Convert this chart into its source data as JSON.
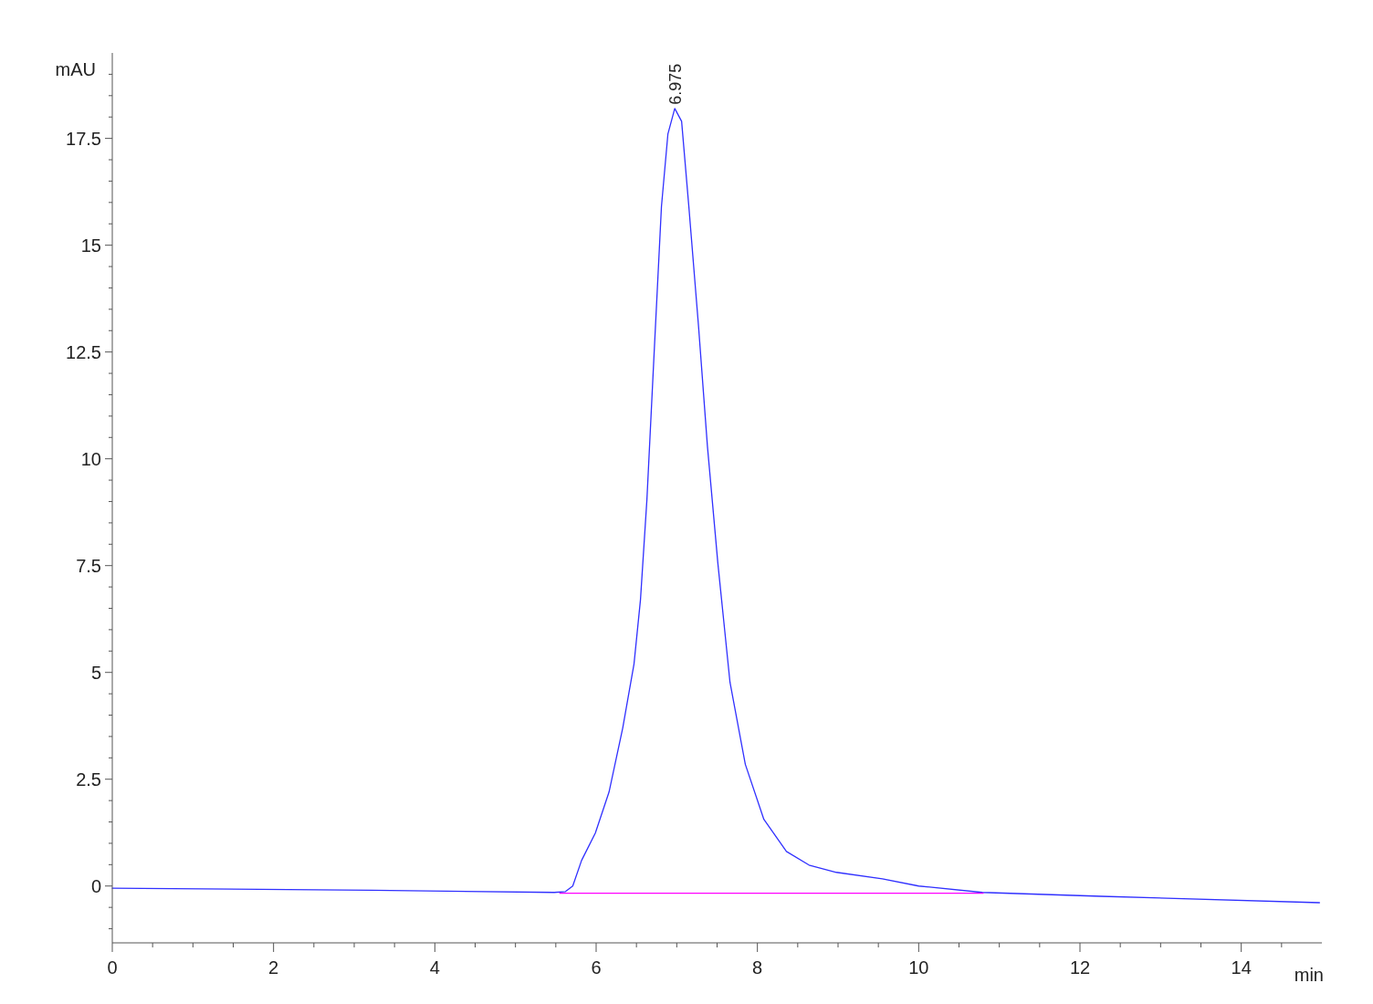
{
  "chart_data": {
    "type": "line",
    "xlabel": "min",
    "ylabel": "mAU",
    "xlim": [
      0,
      15
    ],
    "ylim": [
      -1.33,
      19.5
    ],
    "xticks": [
      0,
      {
        "value": 0.5,
        "label": null
      },
      {
        "value": 1,
        "label": null
      },
      {
        "value": 1.5,
        "label": null
      },
      2,
      {
        "value": 2.5,
        "label": null
      },
      {
        "value": 3,
        "label": null
      },
      {
        "value": 3.5,
        "label": null
      },
      4,
      {
        "value": 4.5,
        "label": null
      },
      {
        "value": 5,
        "label": null
      },
      {
        "value": 5.5,
        "label": null
      },
      6,
      {
        "value": 6.5,
        "label": null
      },
      {
        "value": 7,
        "label": null
      },
      {
        "value": 7.5,
        "label": null
      },
      8,
      {
        "value": 8.5,
        "label": null
      },
      {
        "value": 9,
        "label": null
      },
      {
        "value": 9.5,
        "label": null
      },
      10,
      {
        "value": 10.5,
        "label": null
      },
      {
        "value": 11,
        "label": null
      },
      {
        "value": 11.5,
        "label": null
      },
      12,
      {
        "value": 12.5,
        "label": null
      },
      {
        "value": 13,
        "label": null
      },
      {
        "value": 13.5,
        "label": null
      },
      14,
      {
        "value": 14.5,
        "label": null
      }
    ],
    "yticks": [
      {
        "value": -1,
        "label": null
      },
      {
        "value": -0.5,
        "label": null
      },
      0,
      {
        "value": 0.5,
        "label": null
      },
      {
        "value": 1,
        "label": null
      },
      {
        "value": 1.5,
        "label": null
      },
      {
        "value": 2,
        "label": null
      },
      2.5,
      {
        "value": 3,
        "label": null
      },
      {
        "value": 3.5,
        "label": null
      },
      {
        "value": 4,
        "label": null
      },
      {
        "value": 4.5,
        "label": null
      },
      5,
      {
        "value": 5.5,
        "label": null
      },
      {
        "value": 6,
        "label": null
      },
      {
        "value": 6.5,
        "label": null
      },
      {
        "value": 7,
        "label": null
      },
      7.5,
      {
        "value": 8,
        "label": null
      },
      {
        "value": 8.5,
        "label": null
      },
      {
        "value": 9,
        "label": null
      },
      {
        "value": 9.5,
        "label": null
      },
      10,
      {
        "value": 10.5,
        "label": null
      },
      {
        "value": 11,
        "label": null
      },
      {
        "value": 11.5,
        "label": null
      },
      {
        "value": 12,
        "label": null
      },
      12.5,
      {
        "value": 13,
        "label": null
      },
      {
        "value": 13.5,
        "label": null
      },
      {
        "value": 14,
        "label": null
      },
      {
        "value": 14.5,
        "label": null
      },
      15,
      {
        "value": 15.5,
        "label": null
      },
      {
        "value": 16,
        "label": null
      },
      {
        "value": 16.5,
        "label": null
      },
      {
        "value": 17,
        "label": null
      },
      17.5,
      {
        "value": 18,
        "label": null
      },
      {
        "value": 18.5,
        "label": null
      },
      {
        "value": 19,
        "label": null
      }
    ],
    "grid": false,
    "marker": "none",
    "line_style": "solid",
    "series": [
      {
        "color": "#3030ff",
        "x": [
          0,
          3.22,
          5.48,
          5.62,
          5.71,
          5.82,
          5.99,
          6.16,
          6.33,
          6.47,
          6.55,
          6.63,
          6.72,
          6.81,
          6.89,
          6.975,
          7.06,
          7.15,
          7.27,
          7.38,
          7.51,
          7.66,
          7.85,
          8.08,
          8.36,
          8.64,
          8.98,
          9.55,
          10.0,
          10.79,
          12.26,
          14.97
        ],
        "values": [
          -0.05,
          -0.1,
          -0.15,
          -0.13,
          0,
          0.6,
          1.24,
          2.2,
          3.7,
          5.2,
          6.7,
          9.05,
          12.5,
          15.9,
          17.6,
          18.2,
          17.9,
          15.9,
          13.1,
          10.3,
          7.55,
          4.77,
          2.85,
          1.56,
          0.81,
          0.49,
          0.32,
          0.17,
          0,
          -0.15,
          -0.24,
          -0.39
        ]
      },
      {
        "color": "#ff00ff",
        "x": [
          5.55,
          10.8
        ],
        "values": [
          -0.17,
          -0.17
        ]
      }
    ],
    "annotations": [
      {
        "text": "6.975",
        "x": 6.975,
        "y": 18.2
      }
    ]
  }
}
